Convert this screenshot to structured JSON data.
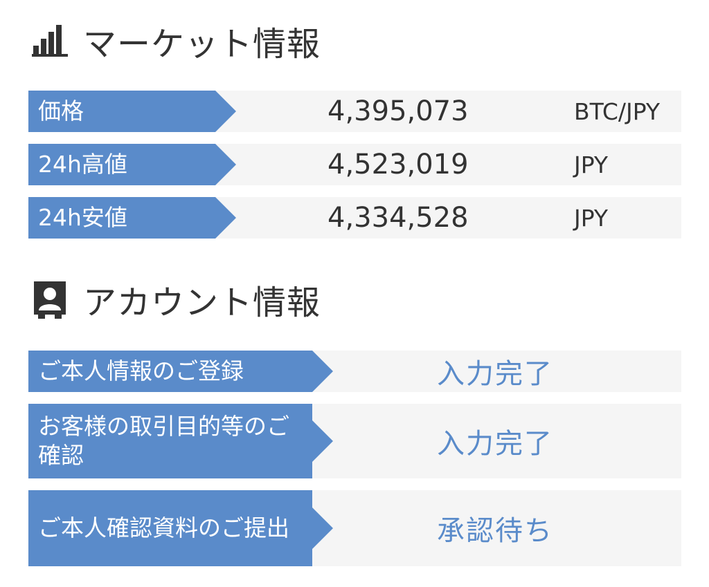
{
  "market": {
    "title": "マーケット情報",
    "icon": "bar-chart-icon",
    "rows": [
      {
        "label": "価格",
        "value": "4,395,073",
        "unit": "BTC/JPY"
      },
      {
        "label": "24h高値",
        "value": "4,523,019",
        "unit": "JPY"
      },
      {
        "label": "24h安値",
        "value": "4,334,528",
        "unit": "JPY"
      }
    ]
  },
  "account": {
    "title": "アカウント情報",
    "icon": "person-id-icon",
    "rows": [
      {
        "label": "ご本人情報のご登録",
        "status": "入力完了"
      },
      {
        "label": "お客様の取引目的等のご確認",
        "status": "入力完了"
      },
      {
        "label": "ご本人確認資料のご提出",
        "status": "承認待ち"
      }
    ]
  },
  "colors": {
    "accent": "#5a8bca",
    "row_bg": "#f5f5f5",
    "text": "#333333"
  }
}
